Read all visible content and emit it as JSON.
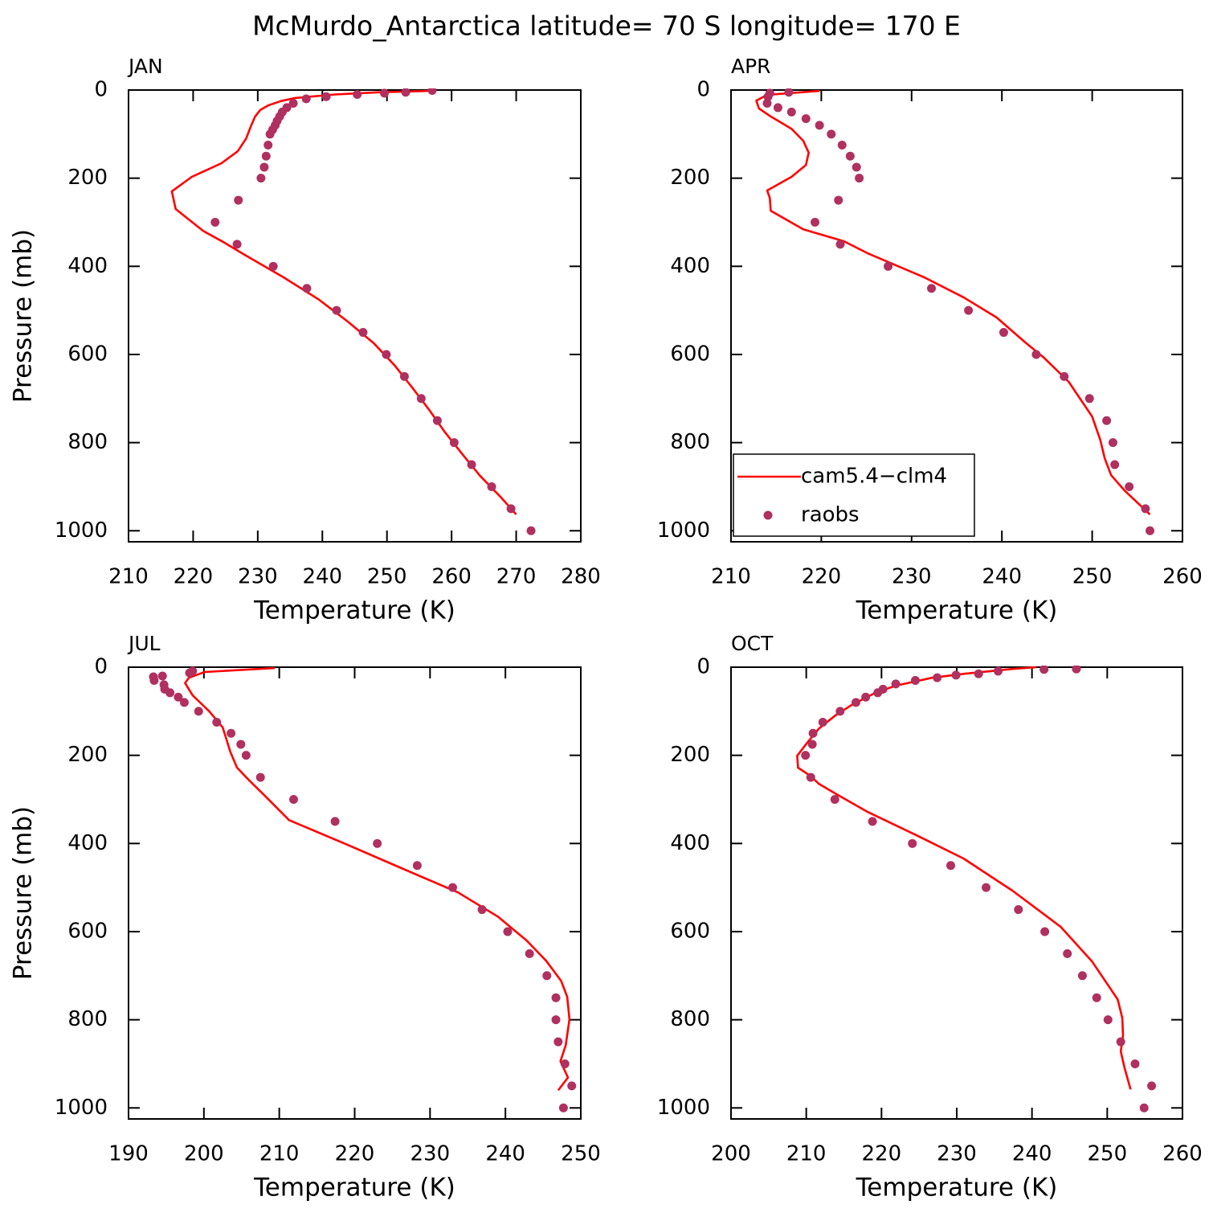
{
  "title": "McMurdo_Antarctica  latitude= 70 S longitude= 170 E",
  "chart_data": [
    {
      "type": "line",
      "title": "JAN",
      "xlabel": "Temperature (K)",
      "ylabel": "Pressure (mb)",
      "xlim": [
        210,
        280
      ],
      "xticks": [
        210,
        220,
        230,
        240,
        250,
        260,
        270,
        280
      ],
      "ylim": [
        1025,
        0
      ],
      "yticks": [
        0,
        200,
        400,
        600,
        800,
        1000
      ],
      "series": [
        {
          "name": "cam5.4−clm4",
          "color": "#ff0000",
          "mode": "line",
          "x": [
            270.0,
            267.7,
            264.4,
            261.6,
            258.9,
            256.5,
            253.9,
            251.2,
            248.0,
            243.9,
            239.4,
            234.0,
            228.1,
            224.7,
            221.6,
            219.0,
            217.3,
            216.7,
            219.8,
            224.4,
            226.9,
            228.2,
            229.0,
            229.6,
            230.4,
            231.6,
            233.6,
            235.8,
            242.0,
            249.0,
            256.5
          ],
          "values": [
            963,
            925,
            875,
            825,
            775,
            725,
            675,
            625,
            575,
            525,
            475,
            425,
            375,
            345,
            320,
            290,
            270,
            230,
            197,
            166,
            139,
            110,
            80,
            60,
            45,
            35,
            25,
            18,
            10,
            5,
            2
          ]
        },
        {
          "name": "raobs",
          "color": "#b03060",
          "mode": "markers",
          "x": [
            272.3,
            269.2,
            266.2,
            263.1,
            260.4,
            257.8,
            255.3,
            252.7,
            249.9,
            246.3,
            242.2,
            237.6,
            232.4,
            226.8,
            223.4,
            227.0,
            230.5,
            231.0,
            231.3,
            231.6,
            231.9,
            232.3,
            232.7,
            233.0,
            233.4,
            233.8,
            234.5,
            235.5,
            237.5,
            240.6,
            245.4,
            249.6,
            252.9,
            257.0
          ],
          "values": [
            1000,
            950,
            900,
            850,
            800,
            750,
            700,
            650,
            600,
            550,
            500,
            450,
            400,
            350,
            300,
            250,
            200,
            175,
            150,
            125,
            100,
            90,
            80,
            70,
            60,
            50,
            40,
            30,
            20,
            15,
            10,
            7,
            5,
            1
          ]
        }
      ]
    },
    {
      "type": "line",
      "title": "APR",
      "xlabel": "Temperature (K)",
      "legend": "lower left",
      "xlim": [
        210,
        260
      ],
      "xticks": [
        210,
        220,
        230,
        240,
        250,
        260
      ],
      "ylim": [
        1025,
        0
      ],
      "yticks": [
        0,
        200,
        400,
        600,
        800,
        1000
      ],
      "series": [
        {
          "name": "cam5.4−clm4",
          "color": "#ff0000",
          "mode": "line",
          "x": [
            256.4,
            253.6,
            252.1,
            251.4,
            250.9,
            250.0,
            247.4,
            244.7,
            242.5,
            239.4,
            235.8,
            231.4,
            225.1,
            222.5,
            218.0,
            214.4,
            214.3,
            214.0,
            216.7,
            218.3,
            218.6,
            218.0,
            216.7,
            214.4,
            213.1,
            212.8,
            214.0,
            219.8
          ],
          "values": [
            963,
            909,
            874,
            836,
            794,
            741,
            662,
            608,
            571,
            516,
            471,
            425,
            370,
            343,
            316,
            274,
            245,
            228,
            197,
            170,
            142,
            115,
            88,
            60,
            42,
            24,
            11,
            2
          ]
        },
        {
          "name": "raobs",
          "color": "#b03060",
          "mode": "markers",
          "x": [
            256.4,
            255.9,
            254.1,
            252.5,
            252.3,
            251.6,
            249.7,
            246.9,
            243.8,
            240.2,
            236.3,
            232.2,
            227.4,
            222.1,
            219.3,
            221.9,
            224.2,
            223.9,
            223.2,
            222.3,
            221.1,
            219.8,
            218.3,
            216.7,
            215.2,
            214.0,
            214.1,
            214.3,
            216.4
          ],
          "values": [
            1000,
            950,
            900,
            850,
            800,
            750,
            700,
            650,
            600,
            550,
            500,
            450,
            400,
            350,
            300,
            250,
            200,
            175,
            150,
            125,
            100,
            80,
            65,
            50,
            40,
            30,
            15,
            7,
            5
          ]
        }
      ]
    },
    {
      "type": "line",
      "title": "JUL",
      "xlabel": "Temperature (K)",
      "ylabel": "Pressure (mb)",
      "xlim": [
        190,
        250
      ],
      "xticks": [
        190,
        200,
        210,
        220,
        230,
        240,
        250
      ],
      "ylim": [
        1025,
        0
      ],
      "yticks": [
        0,
        200,
        400,
        600,
        800,
        1000
      ],
      "series": [
        {
          "name": "cam5.4−clm4",
          "color": "#ff0000",
          "mode": "line",
          "x": [
            247.0,
            248.3,
            247.3,
            248.0,
            248.5,
            248.2,
            247.4,
            245.4,
            242.8,
            239.0,
            233.7,
            226.2,
            218.8,
            211.3,
            208.1,
            205.9,
            204.4,
            203.5,
            202.5,
            200.7,
            198.5,
            197.5,
            198.0,
            200.1,
            209.4
          ],
          "values": [
            960,
            931,
            894,
            858,
            799,
            748,
            712,
            666,
            620,
            566,
            511,
            456,
            401,
            347,
            292,
            255,
            228,
            192,
            137,
            100,
            64,
            36,
            24,
            11,
            2
          ]
        },
        {
          "name": "raobs",
          "color": "#b03060",
          "mode": "markers",
          "x": [
            247.7,
            248.8,
            247.9,
            247.0,
            246.7,
            246.7,
            245.5,
            243.2,
            240.3,
            236.9,
            233.0,
            228.3,
            223.0,
            217.4,
            211.9,
            207.5,
            205.6,
            204.9,
            203.6,
            201.7,
            199.3,
            197.4,
            196.6,
            195.5,
            194.8,
            194.7,
            193.4,
            193.3,
            194.5,
            198.1,
            198.5
          ],
          "values": [
            1000,
            950,
            900,
            850,
            800,
            750,
            700,
            650,
            600,
            550,
            500,
            450,
            400,
            350,
            300,
            250,
            200,
            175,
            150,
            125,
            100,
            80,
            68,
            58,
            50,
            40,
            30,
            22,
            20,
            13,
            9
          ]
        }
      ]
    },
    {
      "type": "line",
      "title": "OCT",
      "xlabel": "Temperature (K)",
      "xlim": [
        200,
        260
      ],
      "xticks": [
        200,
        210,
        220,
        230,
        240,
        250,
        260
      ],
      "ylim": [
        1025,
        0
      ],
      "yticks": [
        0,
        200,
        400,
        600,
        800,
        1000
      ],
      "series": [
        {
          "name": "cam5.4−clm4",
          "color": "#ff0000",
          "mode": "line",
          "x": [
            253.1,
            252.3,
            251.8,
            252.1,
            252.0,
            251.4,
            248.0,
            243.8,
            237.4,
            230.9,
            224.5,
            218.1,
            213.9,
            211.7,
            210.5,
            208.9,
            208.8,
            210.1,
            211.7,
            213.9,
            216.0,
            219.2,
            221.9,
            226.7,
            231.0,
            237.4,
            240.6
          ],
          "values": [
            958,
            909,
            872,
            836,
            796,
            754,
            668,
            589,
            507,
            434,
            380,
            328,
            287,
            265,
            246,
            228,
            201,
            172,
            139,
            109,
            86,
            58,
            42,
            24,
            15,
            4,
            0
          ]
        },
        {
          "name": "raobs",
          "color": "#b03060",
          "mode": "markers",
          "x": [
            254.9,
            255.9,
            253.7,
            251.8,
            250.1,
            248.6,
            246.7,
            244.7,
            241.7,
            238.2,
            233.9,
            229.2,
            224.1,
            218.8,
            213.8,
            210.6,
            209.9,
            210.8,
            210.9,
            212.2,
            214.5,
            216.6,
            217.9,
            219.5,
            220.2,
            221.9,
            224.5,
            227.4,
            229.9,
            232.9,
            235.5,
            241.6,
            245.9
          ],
          "values": [
            1000,
            950,
            900,
            850,
            800,
            750,
            700,
            650,
            600,
            550,
            500,
            450,
            400,
            350,
            300,
            250,
            200,
            175,
            150,
            125,
            100,
            80,
            68,
            58,
            50,
            38,
            30,
            24,
            18,
            15,
            9,
            5,
            4
          ]
        }
      ]
    }
  ]
}
